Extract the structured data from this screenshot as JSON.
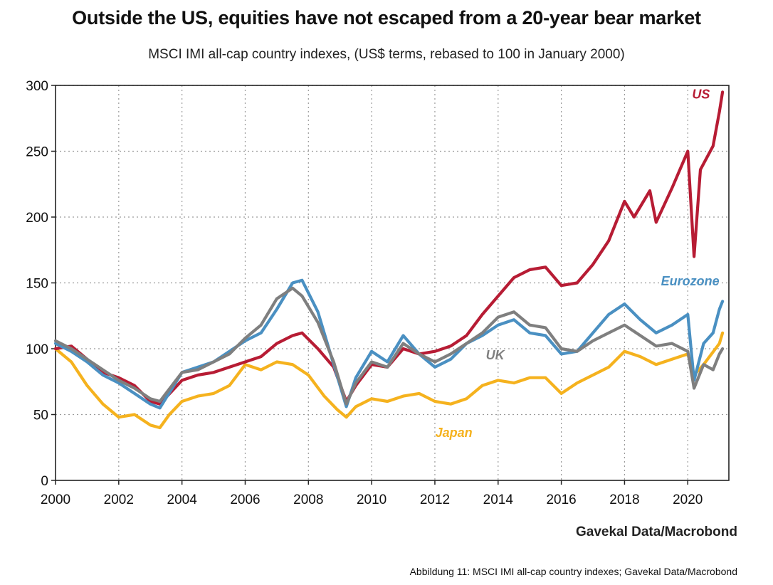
{
  "title": "Outside the US, equities have not escaped from a 20-year bear market",
  "subtitle": "MSCI IMI all-cap country indexes, (US$ terms, rebased to 100 in January 2000)",
  "source": "Gavekal Data/Macrobond",
  "caption": "Abbildung 11: MSCI IMI all-cap country indexes; Gavekal Data/Macrobond",
  "chart_data": {
    "type": "line",
    "title": "Outside the US, equities have not escaped from a 20-year bear market",
    "subtitle": "MSCI IMI all-cap country indexes, (US$ terms, rebased to 100 in January 2000)",
    "xlabel": "",
    "ylabel": "",
    "xlim": [
      2000,
      2021.3
    ],
    "ylim": [
      0,
      300
    ],
    "xticks": [
      2000,
      2002,
      2004,
      2006,
      2008,
      2010,
      2012,
      2014,
      2016,
      2018,
      2020
    ],
    "yticks": [
      0,
      50,
      100,
      150,
      200,
      250,
      300
    ],
    "grid": true,
    "legend": "inline labels",
    "series": [
      {
        "name": "Japan",
        "color": "#f5b21e",
        "x": [
          2000,
          2000.5,
          2001,
          2001.5,
          2002,
          2002.5,
          2003,
          2003.3,
          2003.6,
          2004,
          2004.5,
          2005,
          2005.5,
          2006,
          2006.5,
          2007,
          2007.5,
          2008,
          2008.5,
          2008.9,
          2009.2,
          2009.5,
          2010,
          2010.5,
          2011,
          2011.5,
          2012,
          2012.5,
          2013,
          2013.5,
          2014,
          2014.5,
          2015,
          2015.5,
          2016,
          2016.5,
          2017,
          2017.5,
          2018,
          2018.5,
          2019,
          2019.5,
          2020,
          2020.2,
          2020.5,
          2021,
          2021.1
        ],
        "y": [
          100,
          90,
          72,
          58,
          48,
          50,
          42,
          40,
          50,
          60,
          64,
          66,
          72,
          88,
          84,
          90,
          88,
          80,
          64,
          54,
          48,
          56,
          62,
          60,
          64,
          66,
          60,
          58,
          62,
          72,
          76,
          74,
          78,
          78,
          66,
          74,
          80,
          86,
          98,
          94,
          88,
          92,
          96,
          80,
          88,
          104,
          112
        ]
      },
      {
        "name": "US",
        "color": "#b71c34",
        "x": [
          2000,
          2000.5,
          2001,
          2001.5,
          2002,
          2002.5,
          2003,
          2003.3,
          2004,
          2004.5,
          2005,
          2005.5,
          2006,
          2006.5,
          2007,
          2007.5,
          2007.8,
          2008.3,
          2008.8,
          2009.2,
          2009.5,
          2010,
          2010.5,
          2011,
          2011.5,
          2012,
          2012.5,
          2013,
          2013.5,
          2014,
          2014.5,
          2015,
          2015.5,
          2016,
          2016.5,
          2017,
          2017.5,
          2018,
          2018.3,
          2018.8,
          2019,
          2019.5,
          2020,
          2020.2,
          2020.4,
          2020.8,
          2021,
          2021.1
        ],
        "y": [
          100,
          102,
          92,
          82,
          78,
          72,
          60,
          58,
          76,
          80,
          82,
          86,
          90,
          94,
          104,
          110,
          112,
          100,
          86,
          60,
          72,
          88,
          86,
          100,
          96,
          98,
          102,
          110,
          126,
          140,
          154,
          160,
          162,
          148,
          150,
          164,
          182,
          212,
          200,
          220,
          196,
          222,
          250,
          170,
          236,
          254,
          280,
          295
        ]
      },
      {
        "name": "Eurozone",
        "color": "#4a90c2",
        "x": [
          2000,
          2000.5,
          2001,
          2001.5,
          2002,
          2002.5,
          2003,
          2003.3,
          2004,
          2004.5,
          2005,
          2005.5,
          2006,
          2006.5,
          2007,
          2007.5,
          2007.8,
          2008.3,
          2008.8,
          2009.2,
          2009.5,
          2010,
          2010.5,
          2011,
          2011.5,
          2012,
          2012.5,
          2013,
          2013.5,
          2014,
          2014.5,
          2015,
          2015.5,
          2016,
          2016.5,
          2017,
          2017.5,
          2018,
          2018.5,
          2019,
          2019.5,
          2020,
          2020.2,
          2020.5,
          2020.8,
          2021,
          2021.1
        ],
        "y": [
          104,
          98,
          90,
          80,
          74,
          66,
          58,
          55,
          82,
          86,
          90,
          98,
          106,
          112,
          130,
          150,
          152,
          128,
          88,
          56,
          78,
          98,
          90,
          110,
          96,
          86,
          92,
          104,
          110,
          118,
          122,
          112,
          110,
          96,
          98,
          112,
          126,
          134,
          122,
          112,
          118,
          126,
          76,
          104,
          112,
          130,
          136
        ]
      },
      {
        "name": "UK",
        "color": "#7f7f7f",
        "x": [
          2000,
          2000.5,
          2001,
          2001.5,
          2002,
          2002.5,
          2003,
          2003.3,
          2004,
          2004.5,
          2005,
          2005.5,
          2006,
          2006.5,
          2007,
          2007.5,
          2007.8,
          2008.3,
          2008.8,
          2009.2,
          2009.5,
          2010,
          2010.5,
          2011,
          2011.5,
          2012,
          2012.5,
          2013,
          2013.5,
          2014,
          2014.5,
          2015,
          2015.5,
          2016,
          2016.5,
          2017,
          2017.5,
          2018,
          2018.5,
          2019,
          2019.5,
          2020,
          2020.2,
          2020.5,
          2020.8,
          2021,
          2021.1
        ],
        "y": [
          106,
          100,
          92,
          84,
          76,
          70,
          62,
          60,
          82,
          84,
          90,
          96,
          108,
          118,
          138,
          146,
          140,
          120,
          90,
          58,
          74,
          90,
          86,
          104,
          96,
          90,
          96,
          104,
          112,
          124,
          128,
          118,
          116,
          100,
          98,
          106,
          112,
          118,
          110,
          102,
          104,
          98,
          70,
          88,
          84,
          96,
          100
        ]
      }
    ],
    "labels": {
      "US": "US",
      "Eurozone": "Eurozone",
      "UK": "UK",
      "Japan": "Japan"
    }
  }
}
